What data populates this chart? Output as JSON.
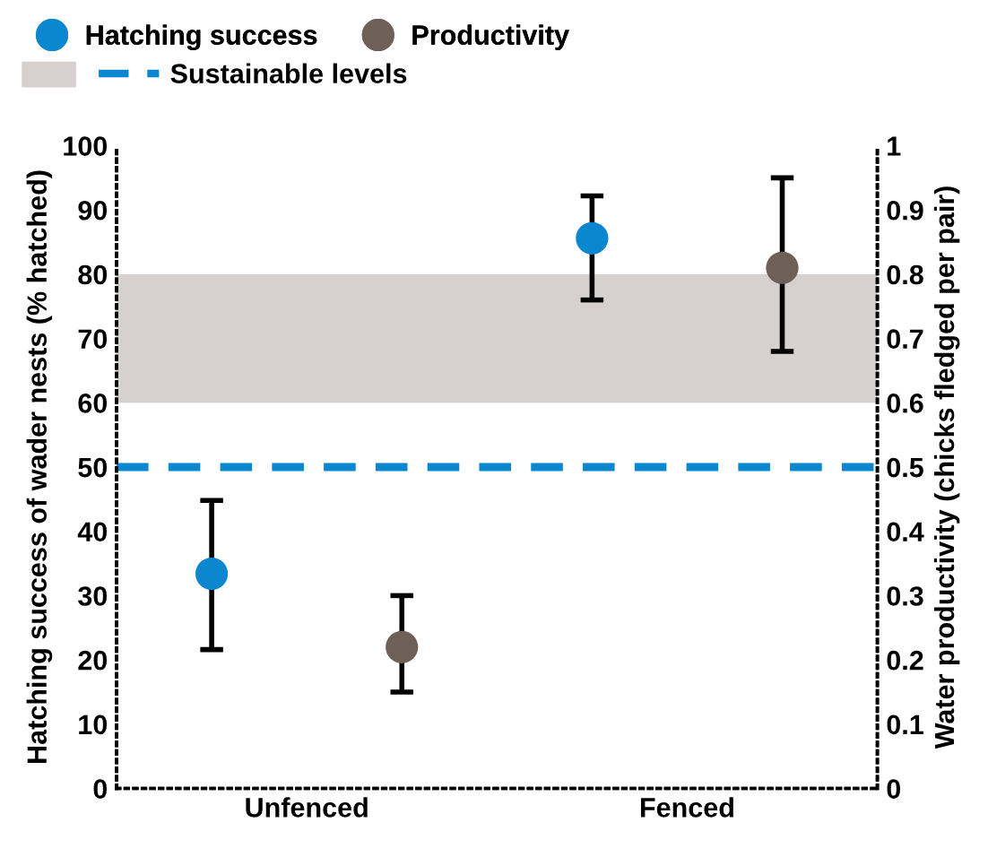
{
  "chart_data": {
    "type": "scatter",
    "categories": [
      "Unfenced",
      "Fenced"
    ],
    "ylabel": "Hatching success of wader nests (% hatched)",
    "y2label": "Water productivity (chicks fledged per pair)",
    "series": [
      {
        "name": "Hatching success",
        "color": "#0a87cf",
        "values": [
          33.4,
          85.6
        ],
        "errors": [
          [
            21.6,
            44.8
          ],
          [
            76,
            92.2
          ]
        ]
      },
      {
        "name": "Productivity",
        "color": "#6e5f57",
        "axis": "y2",
        "values": [
          0.22,
          0.81
        ],
        "errors": [
          [
            0.15,
            0.3
          ],
          [
            0.68,
            0.95
          ]
        ]
      }
    ],
    "ylim": [
      0,
      100
    ],
    "yticks": [
      0,
      10,
      20,
      30,
      40,
      50,
      60,
      70,
      80,
      90,
      100
    ],
    "y2lim": [
      0,
      1
    ],
    "y2ticks": [
      0,
      0.1,
      0.2,
      0.3,
      0.4,
      0.5,
      0.6,
      0.7,
      0.8,
      0.9,
      1
    ],
    "bands": [
      {
        "axis": "y2",
        "from": 0.6,
        "to": 0.8,
        "color": "#d6d1ce"
      }
    ],
    "ref_lines": [
      {
        "axis": "y",
        "value": 50,
        "label": "Sustainable levels",
        "color": "#0a87cf",
        "line_style": "dashed"
      }
    ],
    "marker": "circle",
    "grid": false,
    "legend": "top"
  }
}
